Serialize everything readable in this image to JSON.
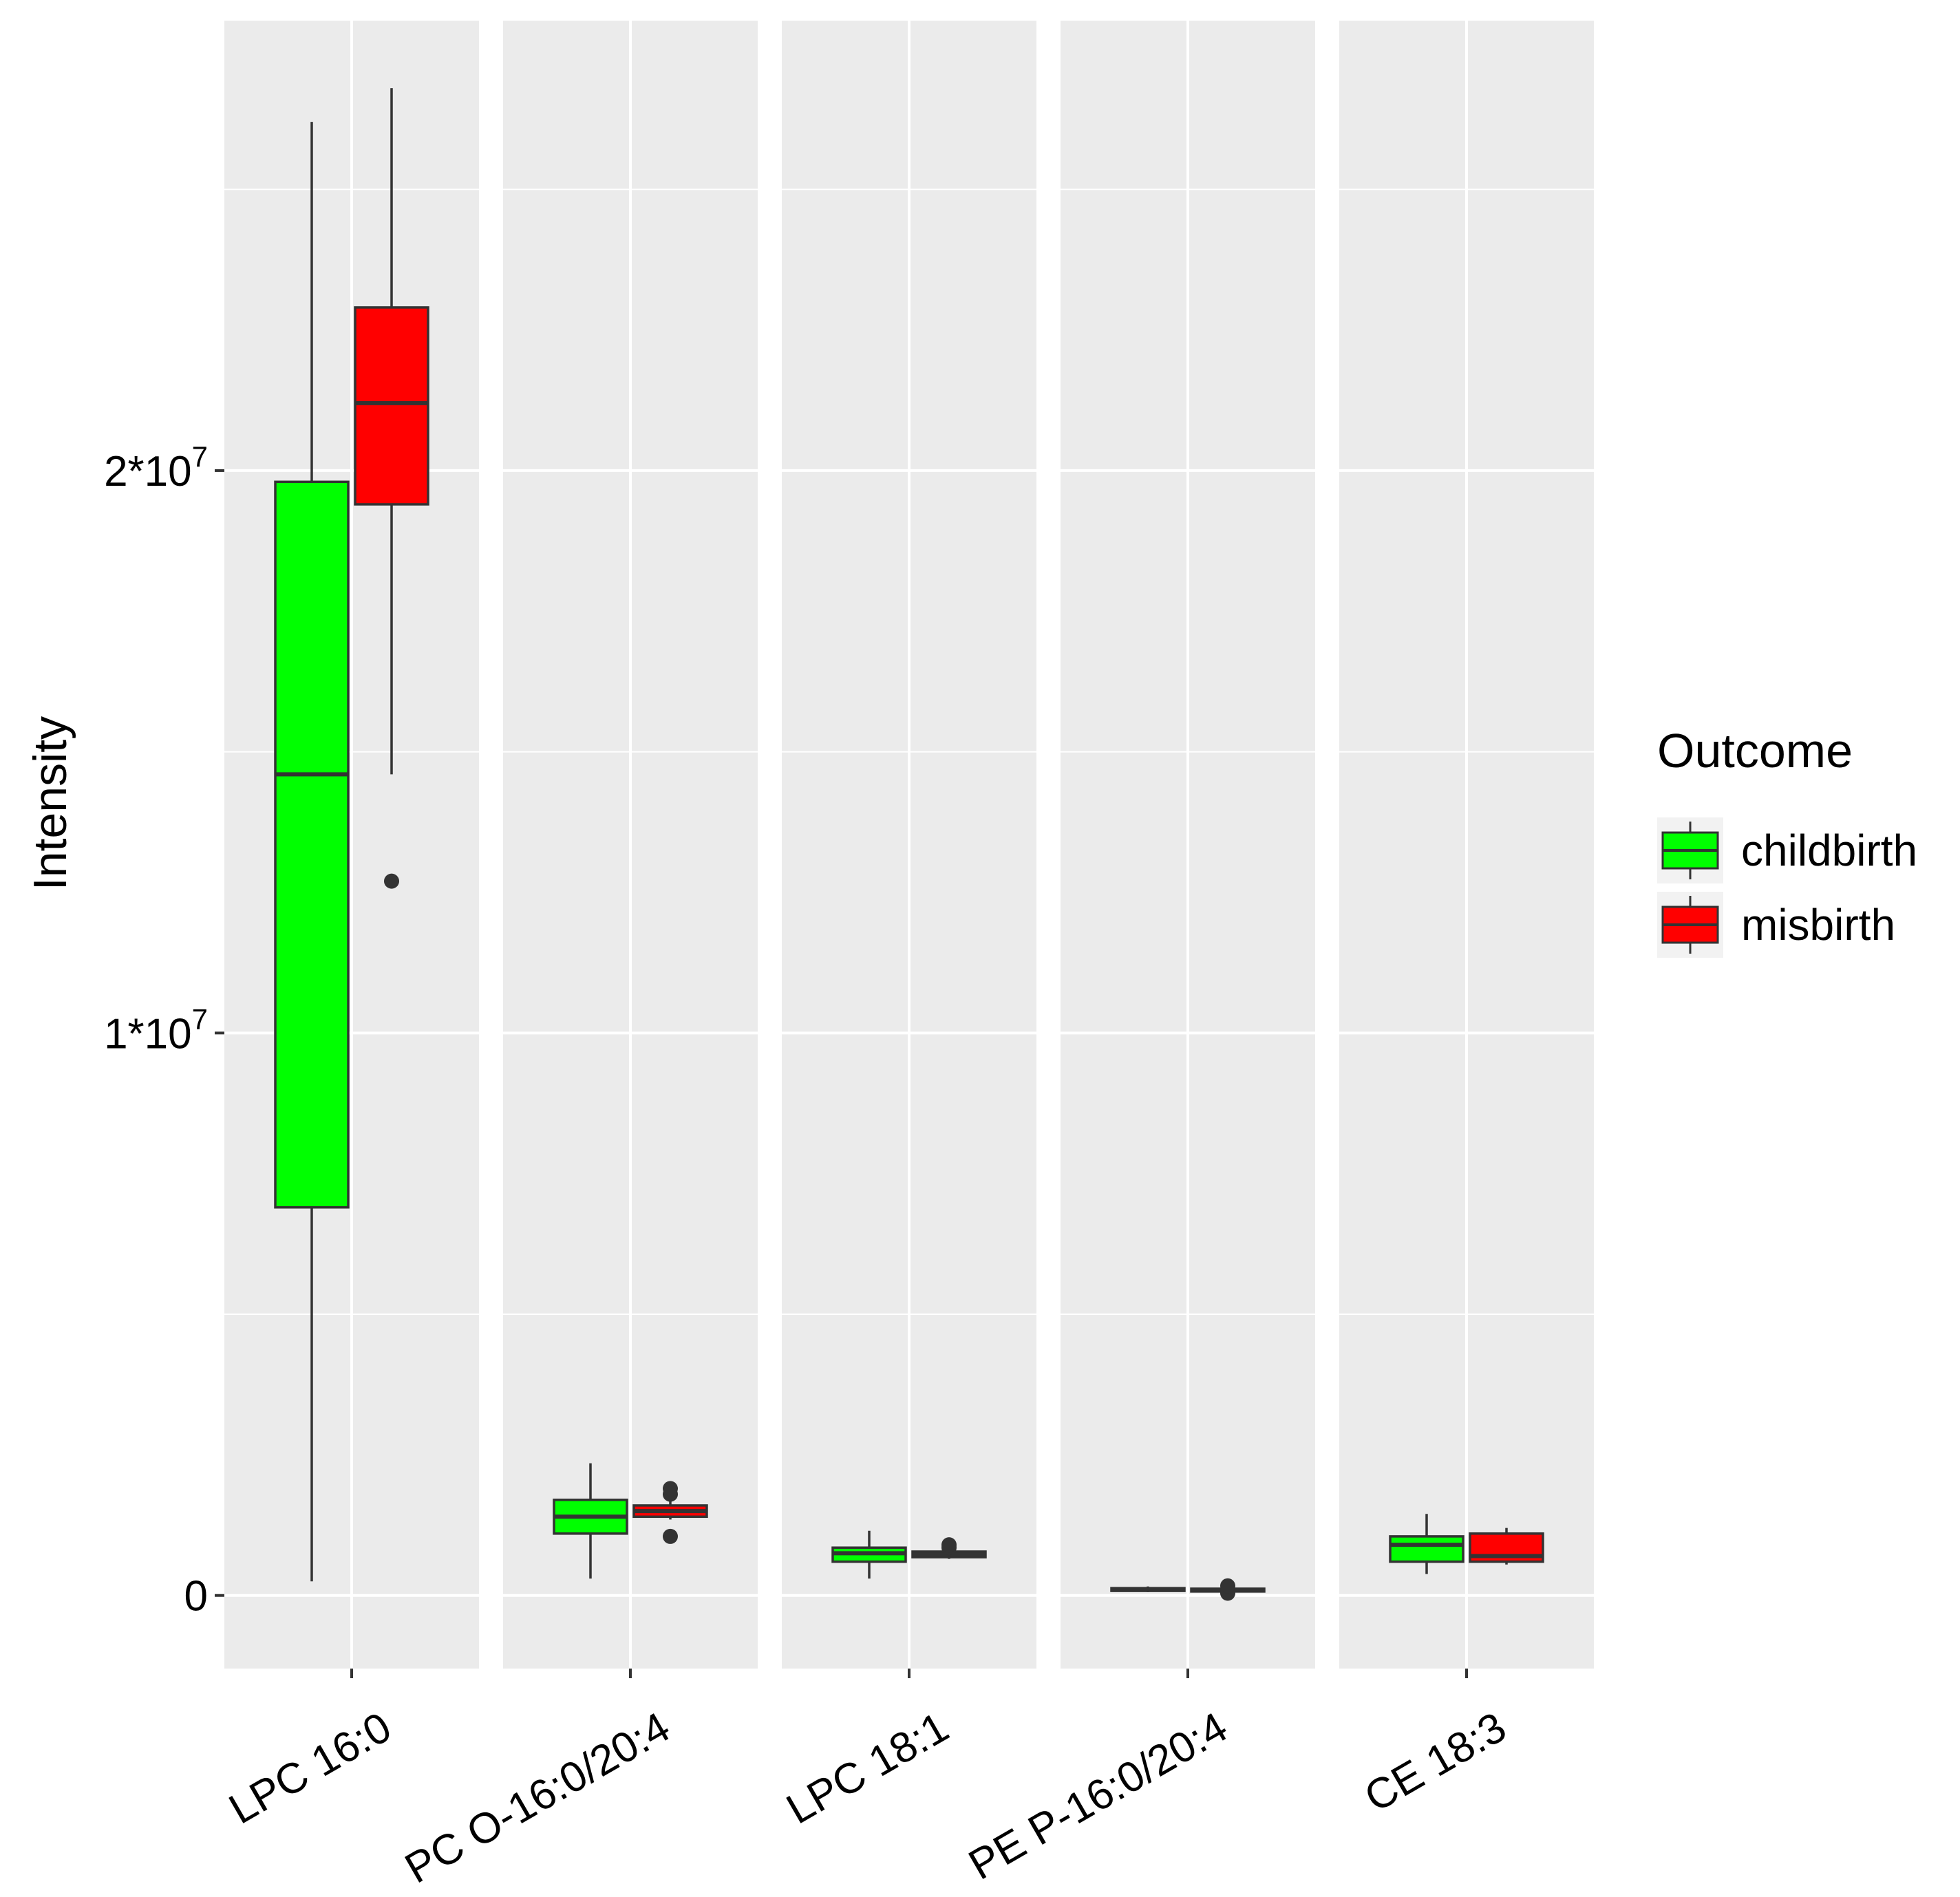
{
  "chart_data": {
    "type": "boxplot",
    "ylabel": "Intensity",
    "y_ticks": [
      {
        "value": 0,
        "base": "0",
        "exp": ""
      },
      {
        "value": 10000000,
        "base": "1*10",
        "exp": "7"
      },
      {
        "value": 20000000,
        "base": "2*10",
        "exp": "7"
      }
    ],
    "ylim": [
      -1300000,
      28000000
    ],
    "facets": [
      "LPC 16:0",
      "PC O-16:0/20:4",
      "LPC 18:1",
      "PE P-16:0/20:4",
      "CE 18:3"
    ],
    "legend": {
      "title": "Outcome",
      "position": "right",
      "entries": [
        {
          "label": "childbirth",
          "color": "#00ff00"
        },
        {
          "label": "misbirth",
          "color": "#ff0000"
        }
      ]
    },
    "series": [
      {
        "name": "childbirth",
        "color": "#00ff00",
        "boxes": [
          {
            "facet": "LPC 16:0",
            "whisker_low": 250000,
            "q1": 6900000,
            "median": 14600000,
            "q3": 19800000,
            "whisker_high": 26200000,
            "outliers": []
          },
          {
            "facet": "PC O-16:0/20:4",
            "whisker_low": 300000,
            "q1": 1100000,
            "median": 1400000,
            "q3": 1700000,
            "whisker_high": 2350000,
            "outliers": []
          },
          {
            "facet": "LPC 18:1",
            "whisker_low": 300000,
            "q1": 600000,
            "median": 750000,
            "q3": 850000,
            "whisker_high": 1150000,
            "outliers": []
          },
          {
            "facet": "PE P-16:0/20:4",
            "whisker_low": 60000,
            "q1": 90000,
            "median": 110000,
            "q3": 130000,
            "whisker_high": 160000,
            "outliers": []
          },
          {
            "facet": "CE 18:3",
            "whisker_low": 380000,
            "q1": 600000,
            "median": 900000,
            "q3": 1050000,
            "whisker_high": 1450000,
            "outliers": []
          }
        ]
      },
      {
        "name": "misbirth",
        "color": "#ff0000",
        "boxes": [
          {
            "facet": "LPC 16:0",
            "whisker_low": 14600000,
            "q1": 19400000,
            "median": 21200000,
            "q3": 22900000,
            "whisker_high": 26800000,
            "outliers": [
              12700000
            ]
          },
          {
            "facet": "PC O-16:0/20:4",
            "whisker_low": 1350000,
            "q1": 1400000,
            "median": 1500000,
            "q3": 1600000,
            "whisker_high": 1700000,
            "outliers": [
              1050000,
              1800000,
              1900000
            ]
          },
          {
            "facet": "LPC 18:1",
            "whisker_low": 650000,
            "q1": 680000,
            "median": 730000,
            "q3": 780000,
            "whisker_high": 800000,
            "outliers": [
              850000,
              900000
            ]
          },
          {
            "facet": "PE P-16:0/20:4",
            "whisker_low": 70000,
            "q1": 80000,
            "median": 100000,
            "q3": 120000,
            "whisker_high": 150000,
            "outliers": [
              40000,
              60000,
              170000
            ]
          },
          {
            "facet": "CE 18:3",
            "whisker_low": 550000,
            "q1": 600000,
            "median": 700000,
            "q3": 1100000,
            "whisker_high": 1200000,
            "outliers": []
          }
        ]
      }
    ],
    "grid": true,
    "background": "#ebebeb"
  }
}
